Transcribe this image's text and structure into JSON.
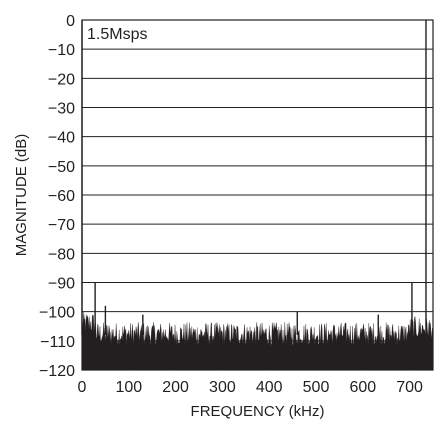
{
  "chart_data": {
    "type": "line",
    "title": "",
    "annotation": "1.5Msps",
    "xlabel": "FREQUENCY (kHz)",
    "ylabel": "MAGNITUDE (dB)",
    "xlim": [
      0,
      750
    ],
    "ylim": [
      -120,
      0
    ],
    "x_ticks": [
      "0",
      "100",
      "200",
      "300",
      "400",
      "500",
      "600",
      "700"
    ],
    "x_tick_values": [
      0,
      100,
      200,
      300,
      400,
      500,
      600,
      700
    ],
    "y_ticks": [
      "0",
      "−10",
      "−20",
      "−30",
      "−40",
      "−50",
      "−60",
      "−70",
      "−80",
      "−90",
      "−100",
      "−110",
      "−120"
    ],
    "y_tick_values": [
      0,
      -10,
      -20,
      -30,
      -40,
      -50,
      -60,
      -70,
      -80,
      -90,
      -100,
      -110,
      -120
    ],
    "grid": "horizontal",
    "noise_floor_db": [
      -104,
      -112
    ],
    "spikes": [
      {
        "x": 0,
        "y": 0
      },
      {
        "x": 28,
        "y": -90
      },
      {
        "x": 50,
        "y": -98
      },
      {
        "x": 130,
        "y": -101
      },
      {
        "x": 460,
        "y": -100
      },
      {
        "x": 633,
        "y": -101
      },
      {
        "x": 705,
        "y": -90
      },
      {
        "x": 735,
        "y": 0
      }
    ],
    "colors": {
      "trace": "#231f20",
      "grid": "#231f20",
      "background": "#ffffff"
    }
  }
}
